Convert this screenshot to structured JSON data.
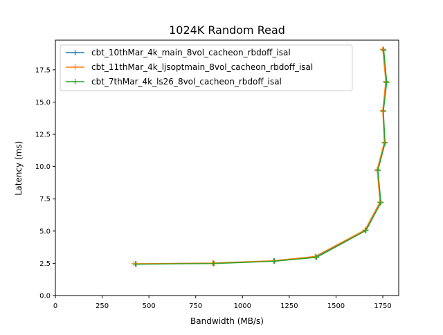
{
  "chart_data": {
    "type": "line",
    "title": "1024K  Random Read",
    "xlabel": "Bandwidth (MB/s)",
    "ylabel": "Latency (ms)",
    "xlim": [
      0,
      1835
    ],
    "ylim": [
      0,
      19.8
    ],
    "xticks": [
      0,
      250,
      500,
      750,
      1000,
      1250,
      1500,
      1750
    ],
    "xtick_labels": [
      "0",
      "250",
      "500",
      "750",
      "1000",
      "1250",
      "1500",
      "1750"
    ],
    "yticks": [
      0,
      2.5,
      5,
      7.5,
      10,
      12.5,
      15,
      17.5
    ],
    "ytick_labels": [
      "0.0",
      "2.5",
      "5.0",
      "7.5",
      "10.0",
      "12.5",
      "15.0",
      "17.5"
    ],
    "grid": false,
    "legend_position": "upper-left",
    "marker": "plus",
    "series": [
      {
        "name": "cbt_10thMar_4k_main_8vol_cacheon_rbdoff_isal",
        "color": "#1f77b4",
        "points": [
          [
            428,
            2.45
          ],
          [
            845,
            2.5
          ],
          [
            1170,
            2.68
          ],
          [
            1393,
            2.98
          ],
          [
            1658,
            5.06
          ],
          [
            1737,
            7.22
          ],
          [
            1722,
            9.72
          ],
          [
            1760,
            11.85
          ],
          [
            1752,
            14.3
          ],
          [
            1769,
            16.55
          ],
          [
            1753,
            19.05
          ]
        ]
      },
      {
        "name": "cbt_11thMar_4k_ljsoptmain_8vol_cacheon_rbdoff_isal",
        "color": "#ff7f0e",
        "points": [
          [
            420,
            2.47
          ],
          [
            840,
            2.52
          ],
          [
            1165,
            2.7
          ],
          [
            1388,
            3.03
          ],
          [
            1655,
            5.08
          ],
          [
            1735,
            7.25
          ],
          [
            1720,
            9.75
          ],
          [
            1758,
            11.88
          ],
          [
            1750,
            14.35
          ],
          [
            1766,
            16.6
          ],
          [
            1750,
            19.1
          ]
        ]
      },
      {
        "name": "cbt_7thMar_4k_ls26_8vol_cacheon_rbdoff_isal",
        "color": "#2ca02c",
        "points": [
          [
            432,
            2.43
          ],
          [
            848,
            2.48
          ],
          [
            1172,
            2.66
          ],
          [
            1396,
            2.96
          ],
          [
            1660,
            5.04
          ],
          [
            1740,
            7.2
          ],
          [
            1724,
            9.7
          ],
          [
            1762,
            11.83
          ],
          [
            1753,
            14.28
          ],
          [
            1771,
            16.52
          ],
          [
            1755,
            19.02
          ]
        ]
      }
    ]
  }
}
